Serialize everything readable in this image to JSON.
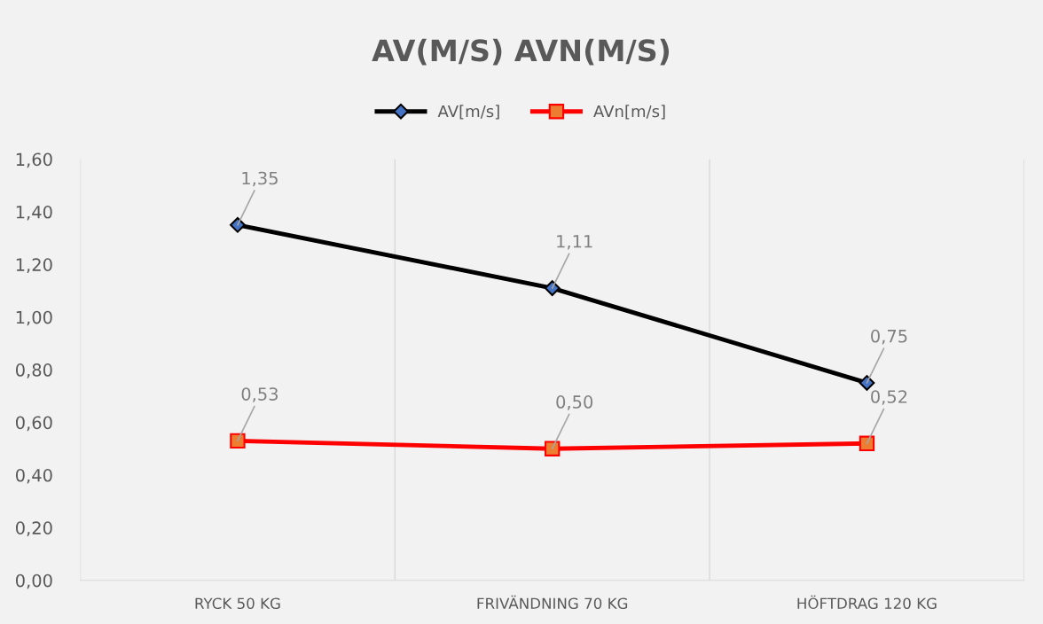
{
  "chart_data": {
    "type": "line",
    "title": "AV(M/S) AVN(M/S)",
    "categories": [
      "RYCK 50 KG",
      "FRIVÄNDNING 70 KG",
      "HÖFTDRAG 120 KG"
    ],
    "series": [
      {
        "name": "AV[m/s]",
        "color": "#000000",
        "marker": "diamond",
        "values": [
          1.35,
          1.11,
          0.75
        ],
        "value_labels": [
          "1,35",
          "1,11",
          "0,75"
        ]
      },
      {
        "name": "AVn[m/s]",
        "color": "#ff0000",
        "marker": "square",
        "values": [
          0.53,
          0.5,
          0.52
        ],
        "value_labels": [
          "0,53",
          "0,50",
          "0,52"
        ]
      }
    ],
    "ylim": [
      0,
      1.6
    ],
    "yticks": [
      {
        "value": 0,
        "label": "0,00"
      },
      {
        "value": 0.2,
        "label": "0,20"
      },
      {
        "value": 0.4,
        "label": "0,40"
      },
      {
        "value": 0.6,
        "label": "0,60"
      },
      {
        "value": 0.8,
        "label": "0,80"
      },
      {
        "value": 1.0,
        "label": "1,00"
      },
      {
        "value": 1.2,
        "label": "1,20"
      },
      {
        "value": 1.4,
        "label": "1,40"
      },
      {
        "value": 1.6,
        "label": "1,60"
      }
    ],
    "grid": "x",
    "legend": "top",
    "line_style": "solid"
  }
}
